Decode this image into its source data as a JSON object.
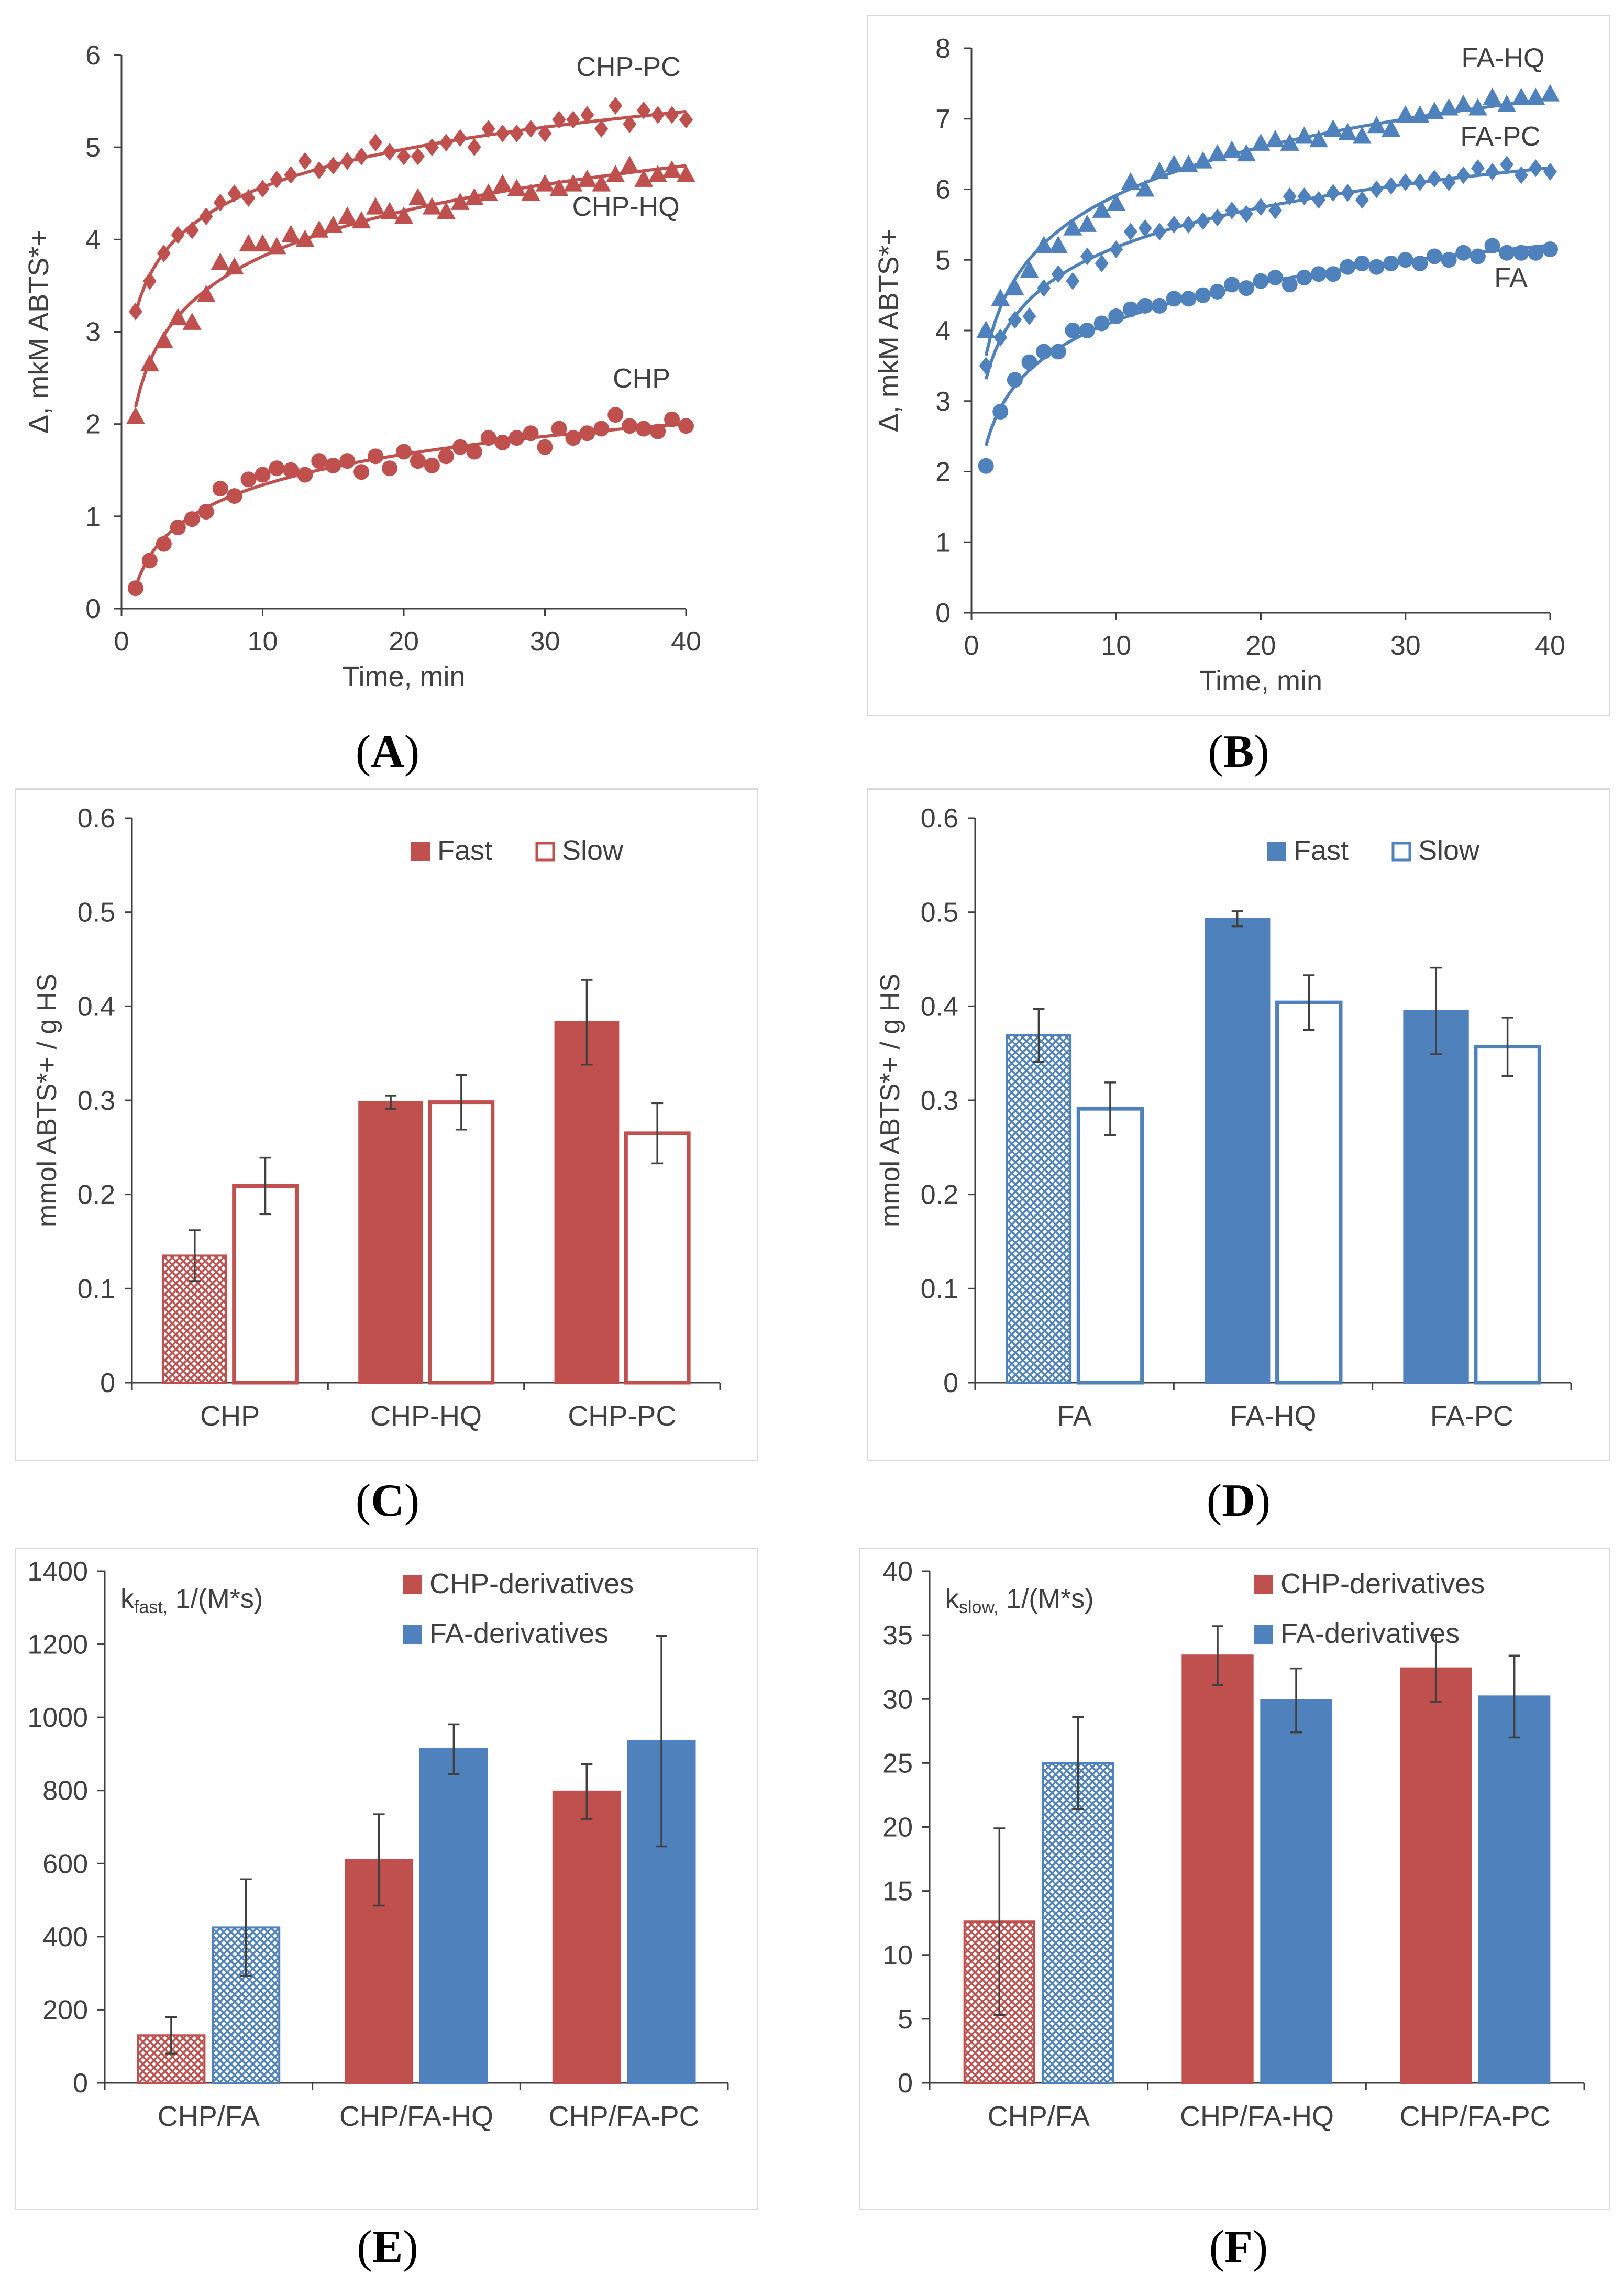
{
  "colors": {
    "red": "#c0504d",
    "blue": "#4f81bd",
    "axis": "#404040",
    "err": "#404040"
  },
  "chart_data": [
    {
      "id": "A",
      "panel_label": "A",
      "type": "scatter",
      "color": "#c0504d",
      "xlabel": "Time, min",
      "ylabel": "Δ, mkM ABTS*+",
      "xlim": [
        0,
        40
      ],
      "ylim": [
        0,
        6
      ],
      "xticks": [
        "0",
        "10",
        "20",
        "30",
        "40"
      ],
      "yticks": [
        "0",
        "1",
        "2",
        "3",
        "4",
        "5",
        "6"
      ],
      "series": [
        {
          "name": "CHP",
          "marker": "circle",
          "x": [
            1,
            2,
            3,
            4,
            5,
            6,
            7,
            8,
            9,
            10,
            11,
            12,
            13,
            14,
            15,
            16,
            17,
            18,
            19,
            20,
            21,
            22,
            23,
            24,
            25,
            26,
            27,
            28,
            29,
            30,
            31,
            32,
            33,
            34,
            35,
            36,
            37,
            38,
            39,
            40
          ],
          "y": [
            0.22,
            0.52,
            0.7,
            0.88,
            0.97,
            1.05,
            1.3,
            1.22,
            1.4,
            1.45,
            1.52,
            1.5,
            1.45,
            1.6,
            1.55,
            1.6,
            1.48,
            1.65,
            1.52,
            1.7,
            1.6,
            1.55,
            1.65,
            1.75,
            1.7,
            1.85,
            1.8,
            1.85,
            1.9,
            1.75,
            1.95,
            1.85,
            1.9,
            1.95,
            2.1,
            1.98,
            1.95,
            1.92,
            2.05,
            1.98
          ]
        },
        {
          "name": "CHP-HQ",
          "marker": "triangle",
          "x": [
            1,
            2,
            3,
            4,
            5,
            6,
            7,
            8,
            9,
            10,
            11,
            12,
            13,
            14,
            15,
            16,
            17,
            18,
            19,
            20,
            21,
            22,
            23,
            24,
            25,
            26,
            27,
            28,
            29,
            30,
            31,
            32,
            33,
            34,
            35,
            36,
            37,
            38,
            39,
            40
          ],
          "y": [
            2.08,
            2.65,
            2.9,
            3.15,
            3.1,
            3.4,
            3.75,
            3.7,
            3.95,
            3.95,
            3.92,
            4.05,
            4.0,
            4.1,
            4.15,
            4.25,
            4.2,
            4.35,
            4.3,
            4.25,
            4.45,
            4.35,
            4.3,
            4.4,
            4.45,
            4.5,
            4.6,
            4.55,
            4.5,
            4.6,
            4.55,
            4.6,
            4.65,
            4.6,
            4.7,
            4.8,
            4.65,
            4.7,
            4.75,
            4.7
          ]
        },
        {
          "name": "CHP-PC",
          "marker": "diamond",
          "x": [
            1,
            2,
            3,
            4,
            5,
            6,
            7,
            8,
            9,
            10,
            11,
            12,
            13,
            14,
            15,
            16,
            17,
            18,
            19,
            20,
            21,
            22,
            23,
            24,
            25,
            26,
            27,
            28,
            29,
            30,
            31,
            32,
            33,
            34,
            35,
            36,
            37,
            38,
            39,
            40
          ],
          "y": [
            3.22,
            3.55,
            3.85,
            4.05,
            4.1,
            4.25,
            4.4,
            4.5,
            4.45,
            4.55,
            4.65,
            4.7,
            4.85,
            4.75,
            4.8,
            4.85,
            4.9,
            5.05,
            4.95,
            4.9,
            4.9,
            5.0,
            5.05,
            5.1,
            5.0,
            5.2,
            5.15,
            5.15,
            5.2,
            5.15,
            5.3,
            5.3,
            5.35,
            5.2,
            5.45,
            5.25,
            5.4,
            5.35,
            5.35,
            5.3
          ]
        }
      ]
    },
    {
      "id": "B",
      "panel_label": "B",
      "type": "scatter",
      "color": "#4f81bd",
      "xlabel": "Time, min",
      "ylabel": "Δ, mkM ABTS*+",
      "xlim": [
        0,
        40
      ],
      "ylim": [
        0,
        8
      ],
      "xticks": [
        "0",
        "10",
        "20",
        "30",
        "40"
      ],
      "yticks": [
        "0",
        "1",
        "2",
        "3",
        "4",
        "5",
        "6",
        "7",
        "8"
      ],
      "series": [
        {
          "name": "FA",
          "marker": "circle",
          "x": [
            1,
            2,
            3,
            4,
            5,
            6,
            7,
            8,
            9,
            10,
            11,
            12,
            13,
            14,
            15,
            16,
            17,
            18,
            19,
            20,
            21,
            22,
            23,
            24,
            25,
            26,
            27,
            28,
            29,
            30,
            31,
            32,
            33,
            34,
            35,
            36,
            37,
            38,
            39,
            40
          ],
          "y": [
            2.08,
            2.85,
            3.3,
            3.55,
            3.7,
            3.7,
            4.0,
            4.0,
            4.1,
            4.2,
            4.3,
            4.35,
            4.35,
            4.45,
            4.45,
            4.5,
            4.55,
            4.65,
            4.6,
            4.7,
            4.75,
            4.65,
            4.75,
            4.8,
            4.8,
            4.9,
            4.95,
            4.9,
            4.95,
            5.0,
            4.95,
            5.05,
            5.0,
            5.1,
            5.05,
            5.2,
            5.1,
            5.1,
            5.1,
            5.15
          ]
        },
        {
          "name": "FA-HQ",
          "marker": "triangle",
          "x": [
            1,
            2,
            3,
            4,
            5,
            6,
            7,
            8,
            9,
            10,
            11,
            12,
            13,
            14,
            15,
            16,
            17,
            18,
            19,
            20,
            21,
            22,
            23,
            24,
            25,
            26,
            27,
            28,
            29,
            30,
            31,
            32,
            33,
            34,
            35,
            36,
            37,
            38,
            39,
            40
          ],
          "y": [
            4.0,
            4.45,
            4.6,
            4.85,
            5.2,
            5.2,
            5.45,
            5.5,
            5.7,
            5.8,
            6.1,
            6.0,
            6.25,
            6.35,
            6.35,
            6.4,
            6.5,
            6.55,
            6.5,
            6.65,
            6.7,
            6.65,
            6.75,
            6.7,
            6.85,
            6.8,
            6.75,
            6.9,
            6.85,
            7.05,
            7.05,
            7.1,
            7.15,
            7.2,
            7.15,
            7.3,
            7.2,
            7.3,
            7.3,
            7.35
          ]
        },
        {
          "name": "FA-PC",
          "marker": "diamond",
          "x": [
            1,
            2,
            3,
            4,
            5,
            6,
            7,
            8,
            9,
            10,
            11,
            12,
            13,
            14,
            15,
            16,
            17,
            18,
            19,
            20,
            21,
            22,
            23,
            24,
            25,
            26,
            27,
            28,
            29,
            30,
            31,
            32,
            33,
            34,
            35,
            36,
            37,
            38,
            39,
            40
          ],
          "y": [
            3.5,
            3.9,
            4.15,
            4.2,
            4.6,
            4.8,
            4.7,
            5.05,
            4.95,
            5.15,
            5.4,
            5.45,
            5.4,
            5.5,
            5.5,
            5.55,
            5.6,
            5.7,
            5.65,
            5.75,
            5.7,
            5.9,
            5.9,
            5.85,
            5.95,
            5.95,
            5.85,
            6.0,
            6.05,
            6.1,
            6.1,
            6.15,
            6.1,
            6.2,
            6.3,
            6.25,
            6.35,
            6.2,
            6.3,
            6.25
          ]
        }
      ]
    },
    {
      "id": "C",
      "panel_label": "C",
      "type": "bar",
      "color": "#c0504d",
      "ylabel": "mmol ABTS*+ / g HS",
      "ylim": [
        0,
        0.6
      ],
      "yticks": [
        "0",
        "0.1",
        "0.2",
        "0.3",
        "0.4",
        "0.5",
        "0.6"
      ],
      "categories": [
        "CHP",
        "CHP-HQ",
        "CHP-PC"
      ],
      "legend": [
        "Fast",
        "Slow"
      ],
      "series": [
        {
          "name": "Fast",
          "style": "filled",
          "values": [
            0.135,
            0.298,
            0.383
          ],
          "errors": [
            0.027,
            0.007,
            0.045
          ],
          "hatched": [
            true,
            false,
            false
          ]
        },
        {
          "name": "Slow",
          "style": "outline",
          "values": [
            0.209,
            0.298,
            0.265
          ],
          "errors": [
            0.03,
            0.029,
            0.032
          ],
          "hatched": [
            false,
            false,
            false
          ]
        }
      ]
    },
    {
      "id": "D",
      "panel_label": "D",
      "type": "bar",
      "color": "#4f81bd",
      "ylabel": "mmol ABTS*+ / g HS",
      "ylim": [
        0,
        0.6
      ],
      "yticks": [
        "0",
        "0.1",
        "0.2",
        "0.3",
        "0.4",
        "0.5",
        "0.6"
      ],
      "categories": [
        "FA",
        "FA-HQ",
        "FA-PC"
      ],
      "legend": [
        "Fast",
        "Slow"
      ],
      "series": [
        {
          "name": "Fast",
          "style": "filled",
          "values": [
            0.369,
            0.493,
            0.395
          ],
          "errors": [
            0.028,
            0.008,
            0.046
          ],
          "hatched": [
            true,
            false,
            false
          ]
        },
        {
          "name": "Slow",
          "style": "outline",
          "values": [
            0.291,
            0.404,
            0.357
          ],
          "errors": [
            0.028,
            0.029,
            0.031
          ],
          "hatched": [
            false,
            false,
            false
          ]
        }
      ]
    },
    {
      "id": "E",
      "panel_label": "E",
      "type": "bar",
      "inner_title": "kfast, 1/(M*s)",
      "ylim": [
        0,
        1400
      ],
      "yticks": [
        "0",
        "200",
        "400",
        "600",
        "800",
        "1000",
        "1200",
        "1400"
      ],
      "categories": [
        "CHP/FA",
        "CHP/FA-HQ",
        "CHP/FA-PC"
      ],
      "legend": [
        "CHP-derivatives",
        "FA-derivatives"
      ],
      "series": [
        {
          "name": "CHP-derivatives",
          "color": "#c0504d",
          "values": [
            130,
            610,
            797
          ],
          "errors": [
            50,
            125,
            75
          ],
          "hatched": [
            true,
            false,
            false
          ]
        },
        {
          "name": "FA-derivatives",
          "color": "#4f81bd",
          "values": [
            425,
            913,
            935
          ],
          "errors": [
            132,
            68,
            288
          ],
          "hatched": [
            true,
            false,
            false
          ]
        }
      ]
    },
    {
      "id": "F",
      "panel_label": "F",
      "type": "bar",
      "inner_title": "kslow, 1/(M*s)",
      "ylim": [
        0,
        40
      ],
      "yticks": [
        "0",
        "5",
        "10",
        "15",
        "20",
        "25",
        "30",
        "35",
        "40"
      ],
      "categories": [
        "CHP/FA",
        "CHP/FA-HQ",
        "CHP/FA-PC"
      ],
      "legend": [
        "CHP-derivatives",
        "FA-derivatives"
      ],
      "series": [
        {
          "name": "CHP-derivatives",
          "color": "#c0504d",
          "values": [
            12.6,
            33.4,
            32.4
          ],
          "errors": [
            7.3,
            2.3,
            2.6
          ],
          "hatched": [
            true,
            false,
            false
          ]
        },
        {
          "name": "FA-derivatives",
          "color": "#4f81bd",
          "values": [
            25.0,
            29.9,
            30.2
          ],
          "errors": [
            3.6,
            2.5,
            3.2
          ],
          "hatched": [
            true,
            false,
            false
          ]
        }
      ]
    }
  ]
}
